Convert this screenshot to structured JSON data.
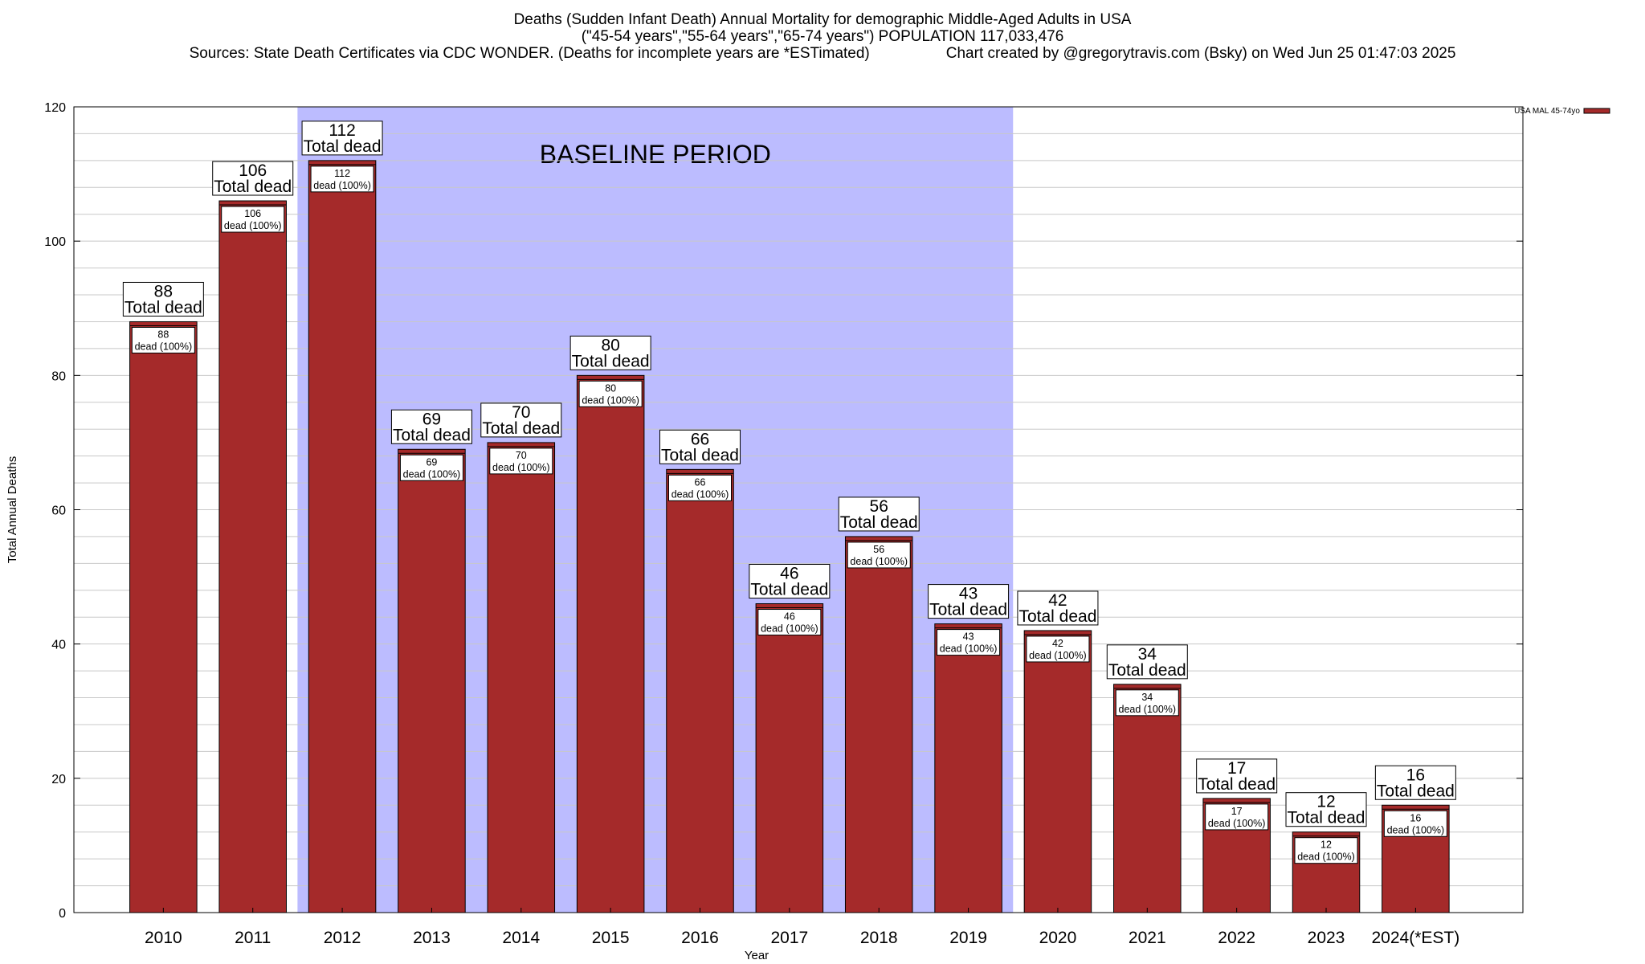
{
  "chart_data": {
    "type": "bar",
    "title": "Deaths (Sudden Infant Death) Annual Mortality for demographic Middle-Aged Adults in USA",
    "subtitle": "(\"45-54 years\",\"55-64 years\",\"65-74 years\") POPULATION 117,033,476",
    "sources": "Sources: State Death Certificates via CDC WONDER. (Deaths for incomplete years are *ESTimated)",
    "credit": "Chart created by @gregorytravis.com (Bsky) on Wed Jun 25 01:47:03 2025",
    "xlabel": "Year",
    "ylabel": "Total Annual Deaths",
    "ylim": [
      0,
      120
    ],
    "yticks": [
      0,
      20,
      40,
      60,
      80,
      100,
      120
    ],
    "minor_grid_step": 4,
    "grid": true,
    "legend_placement": "top-right",
    "categories": [
      "2010",
      "2011",
      "2012",
      "2013",
      "2014",
      "2015",
      "2016",
      "2017",
      "2018",
      "2019",
      "2020",
      "2021",
      "2022",
      "2023",
      "2024(*EST)"
    ],
    "series": [
      {
        "name": "USA MAL 45-74yo",
        "color": "#a52a2a",
        "values": [
          88,
          106,
          112,
          69,
          70,
          80,
          66,
          46,
          56,
          43,
          42,
          34,
          17,
          12,
          16
        ]
      }
    ],
    "total_label_suffix": "Total dead",
    "inner_label_suffix": "dead (100%)",
    "baseline_period": {
      "label": "BASELINE PERIOD",
      "start": "2012",
      "end": "2019",
      "color": "#bcbcff"
    }
  }
}
